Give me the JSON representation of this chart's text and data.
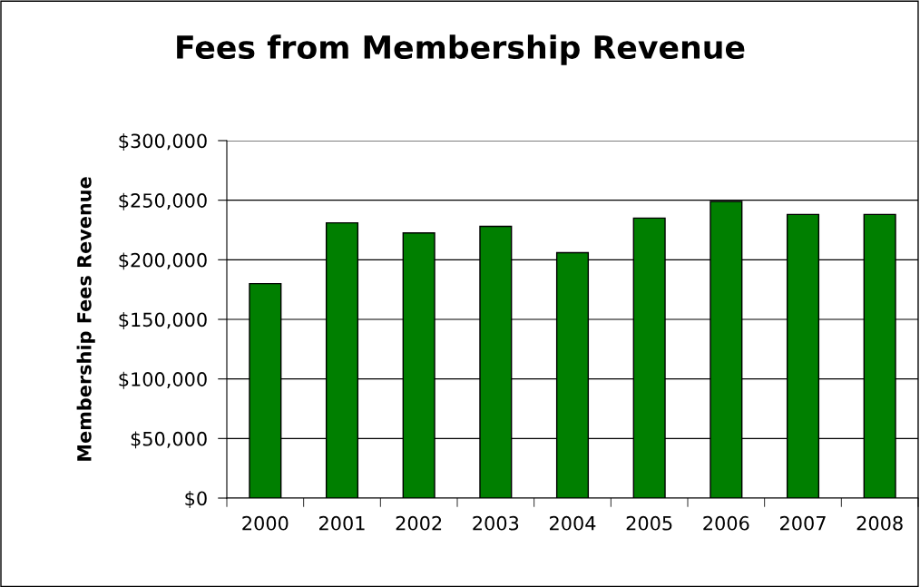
{
  "chart_data": {
    "type": "bar",
    "title": "Fees from Membership Revenue",
    "ylabel": "Membership Fees Revenue",
    "categories": [
      "2000",
      "2001",
      "2002",
      "2003",
      "2004",
      "2005",
      "2006",
      "2007",
      "2008"
    ],
    "values": [
      180000,
      231000,
      222500,
      228000,
      206000,
      235000,
      249000,
      238000,
      238000
    ],
    "color": "#007f00",
    "ylim": [
      0,
      300000
    ],
    "yticks": [
      {
        "value": 0,
        "label": "$0"
      },
      {
        "value": 50000,
        "label": "$50,000"
      },
      {
        "value": 100000,
        "label": "$100,000"
      },
      {
        "value": 150000,
        "label": "$150,000"
      },
      {
        "value": 200000,
        "label": "$200,000"
      },
      {
        "value": 250000,
        "label": "$250,000"
      },
      {
        "value": 300000,
        "label": "$300,000"
      }
    ],
    "grid": "y",
    "legend": false
  }
}
